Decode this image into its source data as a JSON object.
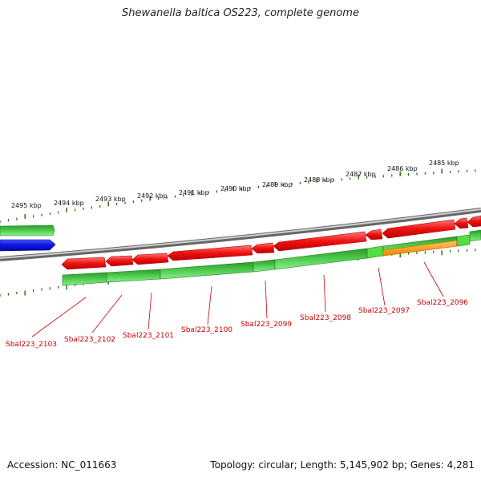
{
  "title": "Shewanella baltica OS223, complete genome",
  "footer": {
    "accession": "Accession: NC_011663",
    "summary": "Topology: circular; Length: 5,145,902 bp; Genes: 4,281"
  },
  "scale_labels": [
    "2495 kbp",
    "2494 kbp",
    "2493 kbp",
    "2492 kbp",
    "2491 kbp",
    "2490 kbp",
    "2489 kbp",
    "2488 kbp",
    "2487 kbp",
    "2486 kbp",
    "2485 kbp"
  ],
  "gene_labels": [
    "Sbal223_2103",
    "Sbal223_2102",
    "Sbal223_2101",
    "Sbal223_2100",
    "Sbal223_2099",
    "Sbal223_2098",
    "Sbal223_2097",
    "Sbal223_2096"
  ],
  "colors": {
    "forward_cds": "#ee1111",
    "rna": "#0a14e0",
    "gene_light": "#55dd44",
    "gene_dark": "#1f8a1f",
    "orange_feature": "#ff9900",
    "backbone": "#7a7a7a",
    "ticks": "#226600",
    "gene_label": "#cc0000"
  }
}
